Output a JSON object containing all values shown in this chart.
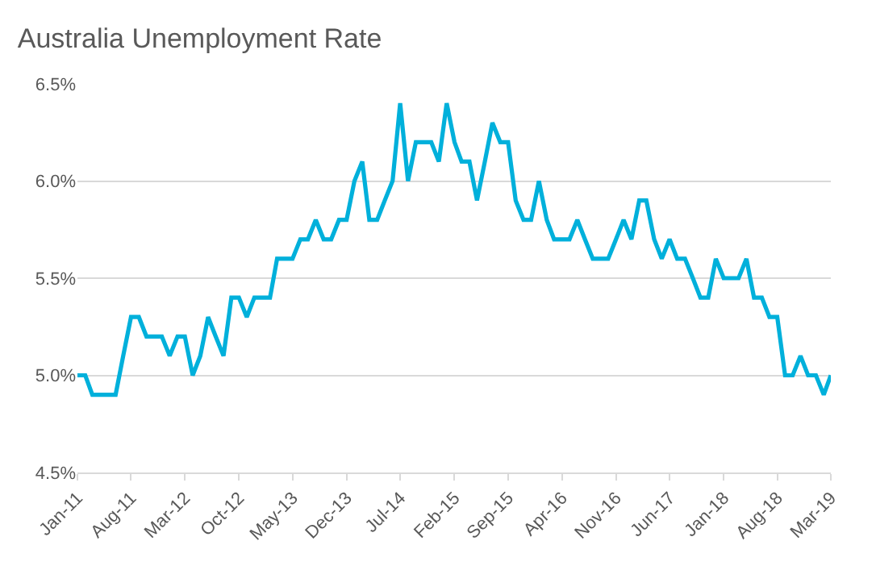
{
  "chart_data": {
    "type": "line",
    "title": "Australia Unemployment Rate",
    "x": [
      "2011-01",
      "2011-02",
      "2011-03",
      "2011-04",
      "2011-05",
      "2011-06",
      "2011-07",
      "2011-08",
      "2011-09",
      "2011-10",
      "2011-11",
      "2011-12",
      "2012-01",
      "2012-02",
      "2012-03",
      "2012-04",
      "2012-05",
      "2012-06",
      "2012-07",
      "2012-08",
      "2012-09",
      "2012-10",
      "2012-11",
      "2012-12",
      "2013-01",
      "2013-02",
      "2013-03",
      "2013-04",
      "2013-05",
      "2013-06",
      "2013-07",
      "2013-08",
      "2013-09",
      "2013-10",
      "2013-11",
      "2013-12",
      "2014-01",
      "2014-02",
      "2014-03",
      "2014-04",
      "2014-05",
      "2014-06",
      "2014-07",
      "2014-08",
      "2014-09",
      "2014-10",
      "2014-11",
      "2014-12",
      "2015-01",
      "2015-02",
      "2015-03",
      "2015-04",
      "2015-05",
      "2015-06",
      "2015-07",
      "2015-08",
      "2015-09",
      "2015-10",
      "2015-11",
      "2015-12",
      "2016-01",
      "2016-02",
      "2016-03",
      "2016-04",
      "2016-05",
      "2016-06",
      "2016-07",
      "2016-08",
      "2016-09",
      "2016-10",
      "2016-11",
      "2016-12",
      "2017-01",
      "2017-02",
      "2017-03",
      "2017-04",
      "2017-05",
      "2017-06",
      "2017-07",
      "2017-08",
      "2017-09",
      "2017-10",
      "2017-11",
      "2017-12",
      "2018-01",
      "2018-02",
      "2018-03",
      "2018-04",
      "2018-05",
      "2018-06",
      "2018-07",
      "2018-08",
      "2018-09",
      "2018-10",
      "2018-11",
      "2018-12",
      "2019-01",
      "2019-02",
      "2019-03"
    ],
    "series": [
      {
        "color": "#00b0db",
        "values": [
          5.0,
          5.0,
          4.9,
          4.9,
          4.9,
          4.9,
          5.1,
          5.3,
          5.3,
          5.2,
          5.2,
          5.2,
          5.1,
          5.2,
          5.2,
          5.0,
          5.1,
          5.3,
          5.2,
          5.1,
          5.4,
          5.4,
          5.3,
          5.4,
          5.4,
          5.4,
          5.6,
          5.6,
          5.6,
          5.7,
          5.7,
          5.8,
          5.7,
          5.7,
          5.8,
          5.8,
          6.0,
          6.1,
          5.8,
          5.8,
          5.9,
          6.0,
          6.4,
          6.0,
          6.2,
          6.2,
          6.2,
          6.1,
          6.4,
          6.2,
          6.1,
          6.1,
          5.9,
          6.1,
          6.3,
          6.2,
          6.2,
          5.9,
          5.8,
          5.8,
          6.0,
          5.8,
          5.7,
          5.7,
          5.7,
          5.8,
          5.7,
          5.6,
          5.6,
          5.6,
          5.7,
          5.8,
          5.7,
          5.9,
          5.9,
          5.7,
          5.6,
          5.7,
          5.6,
          5.6,
          5.5,
          5.4,
          5.4,
          5.6,
          5.5,
          5.5,
          5.5,
          5.6,
          5.4,
          5.4,
          5.3,
          5.3,
          5.0,
          5.0,
          5.1,
          5.0,
          5.0,
          4.9,
          5.0
        ]
      }
    ],
    "xlim": [
      "2011-01",
      "2019-03"
    ],
    "xticks": [
      {
        "value": "2011-01",
        "label": "Jan-11"
      },
      {
        "value": "2011-08",
        "label": "Aug-11"
      },
      {
        "value": "2012-03",
        "label": "Mar-12"
      },
      {
        "value": "2012-10",
        "label": "Oct-12"
      },
      {
        "value": "2013-05",
        "label": "May-13"
      },
      {
        "value": "2013-12",
        "label": "Dec-13"
      },
      {
        "value": "2014-07",
        "label": "Jul-14"
      },
      {
        "value": "2015-02",
        "label": "Feb-15"
      },
      {
        "value": "2015-09",
        "label": "Sep-15"
      },
      {
        "value": "2016-04",
        "label": "Apr-16"
      },
      {
        "value": "2016-11",
        "label": "Nov-16"
      },
      {
        "value": "2017-06",
        "label": "Jun-17"
      },
      {
        "value": "2018-01",
        "label": "Jan-18"
      },
      {
        "value": "2018-08",
        "label": "Aug-18"
      },
      {
        "value": "2019-03",
        "label": "Mar-19"
      }
    ],
    "ylim": [
      4.5,
      6.5
    ],
    "yticks": [
      {
        "value": 4.5,
        "label": "4.5%"
      },
      {
        "value": 5.0,
        "label": "5.0%"
      },
      {
        "value": 5.5,
        "label": "5.5%"
      },
      {
        "value": 6.0,
        "label": "6.0%"
      },
      {
        "value": 6.5,
        "label": "6.5%"
      }
    ],
    "grid": "y",
    "marker": "none",
    "line_style": "solid"
  }
}
